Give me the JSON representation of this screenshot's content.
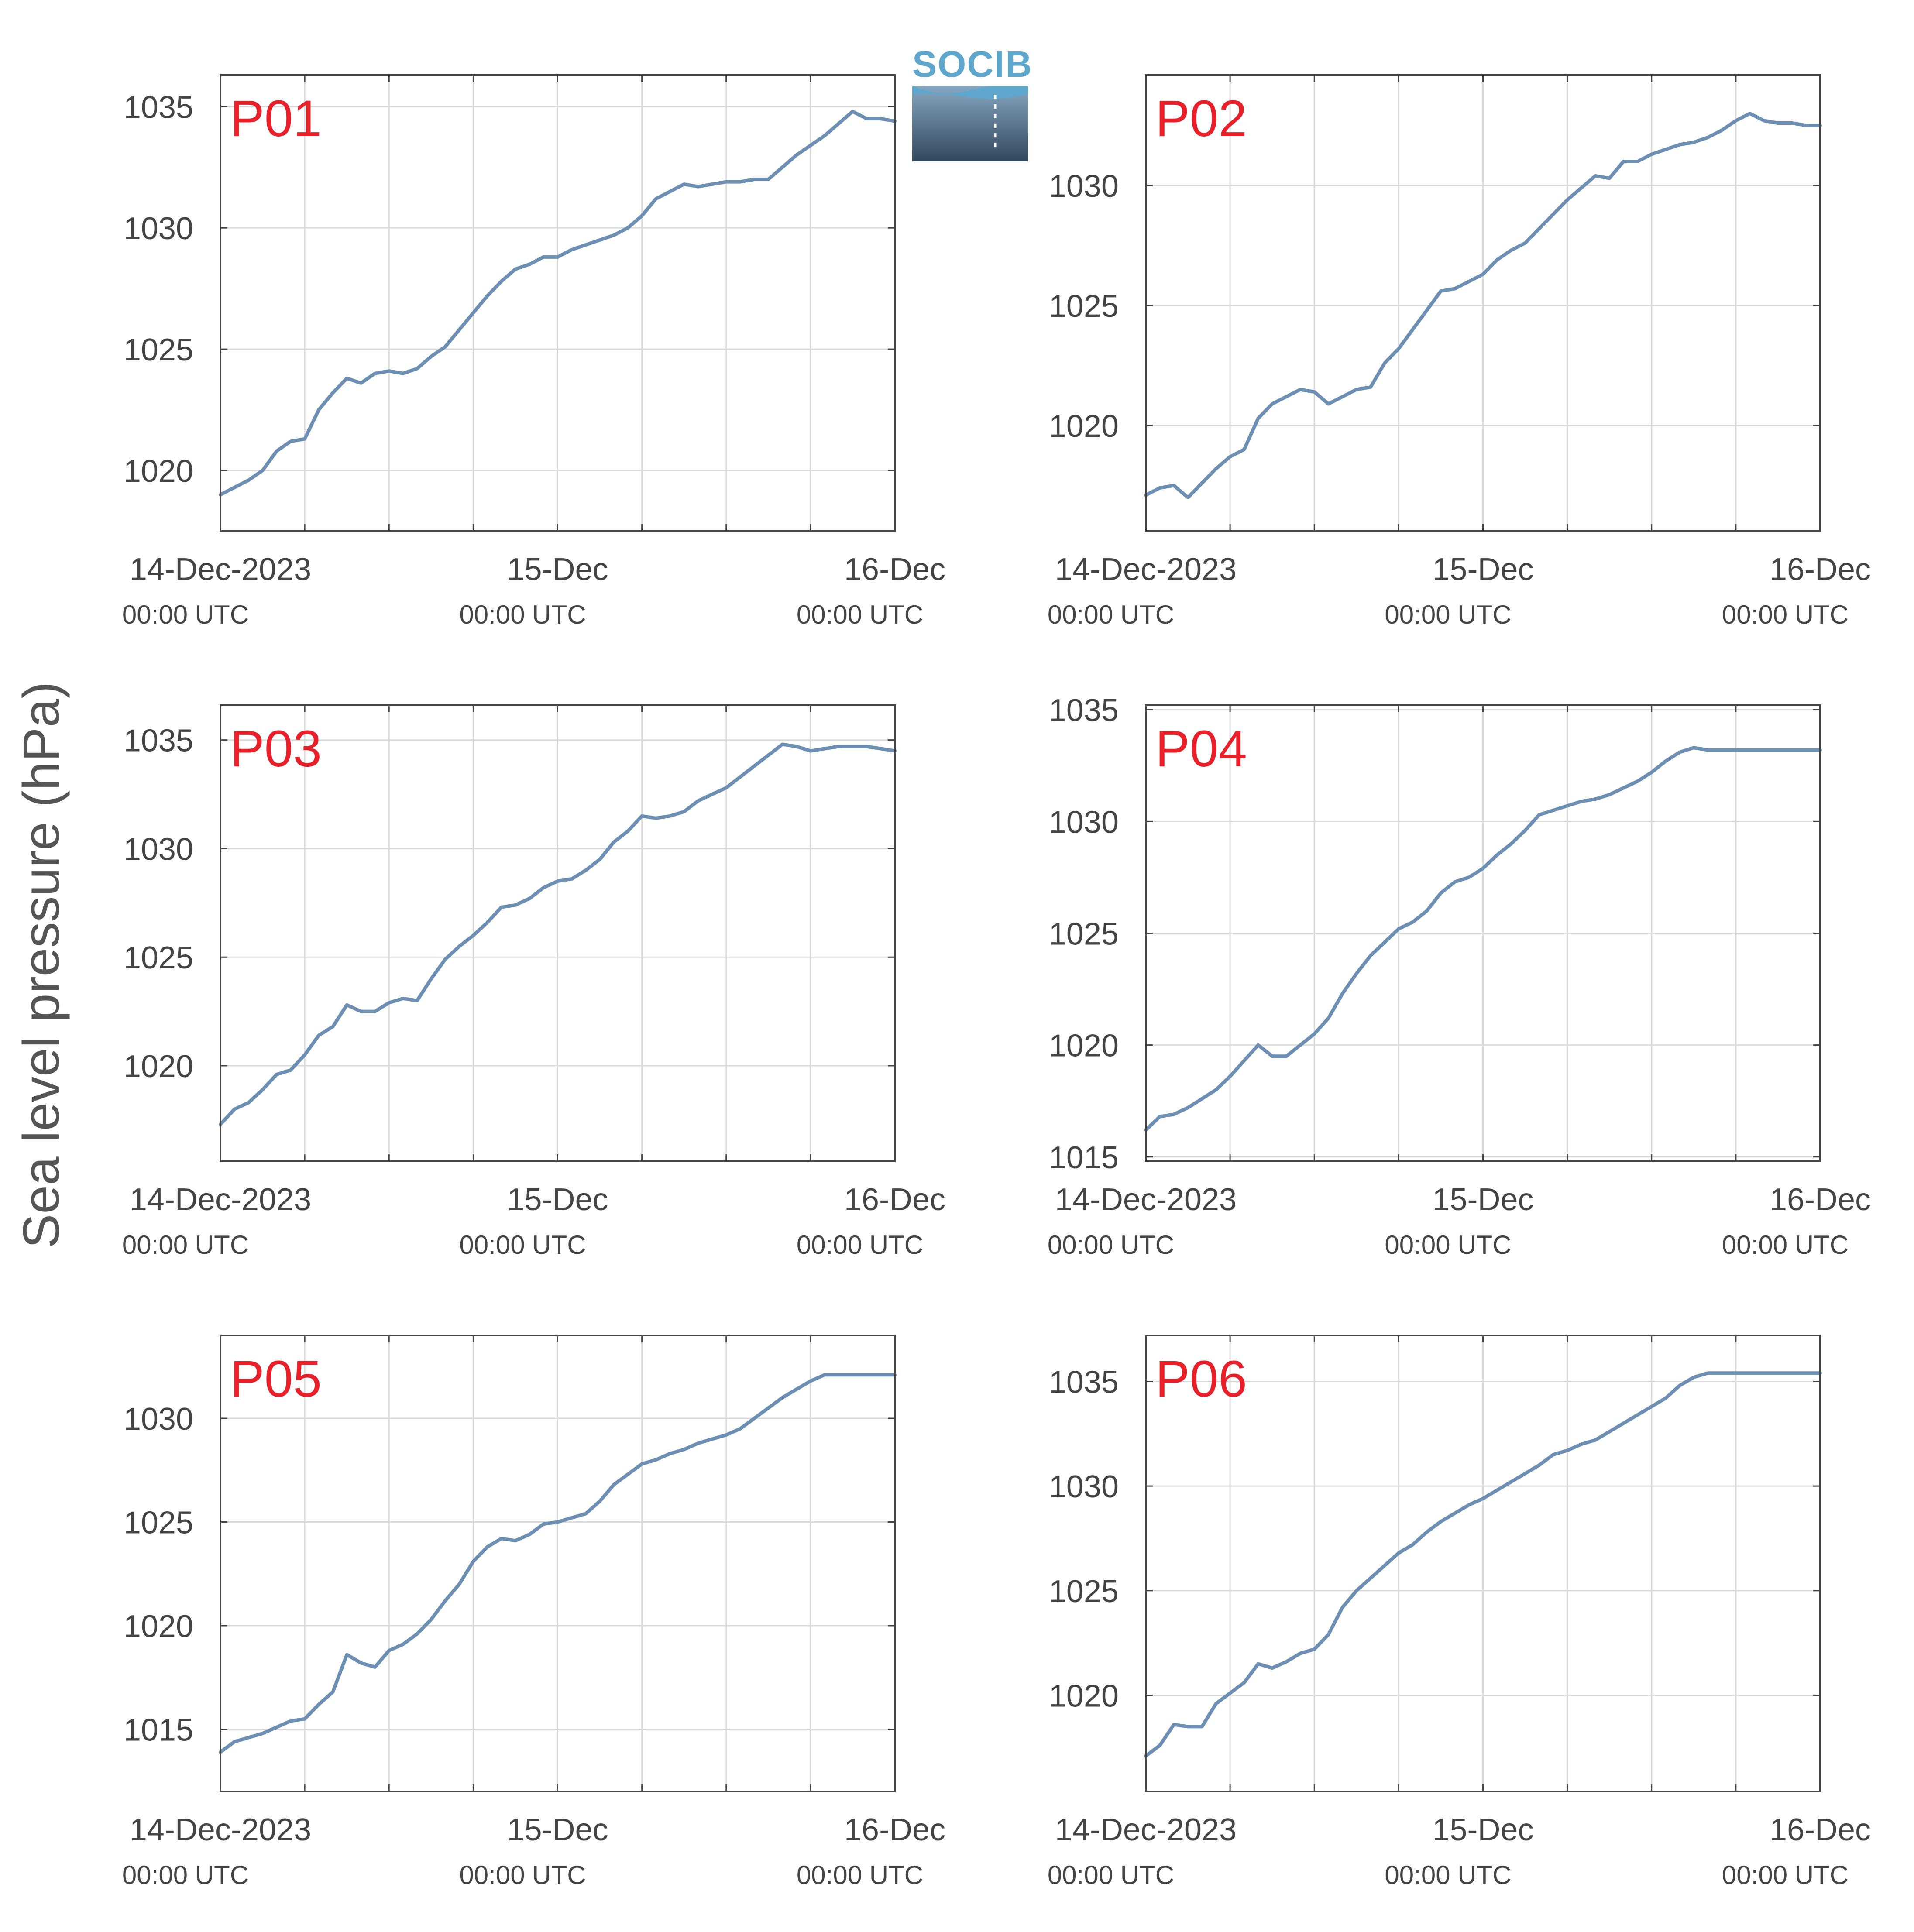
{
  "figure": {
    "ylabel": "Sea level pressure (hPa)",
    "line_color": "#6d8fb4",
    "label_color": "#e8202a",
    "grid_color": "#d9d9d9",
    "axis_color": "#444444",
    "text_color": "#444444"
  },
  "logo": {
    "text": "SOCIB"
  },
  "chart_data": [
    {
      "type": "line",
      "name": "P01",
      "label": "P01",
      "x_label_range": [
        "14-Dec-2023 00:00 UTC",
        "16-Dec 00:00 UTC"
      ],
      "ylim": [
        1017.5,
        1036.3
      ],
      "yticks": [
        1020,
        1025,
        1030,
        1035
      ],
      "xticks": [
        0,
        6,
        12,
        18,
        24,
        30,
        36,
        42,
        48
      ],
      "xtick_labels": [
        {
          "hour": 0,
          "date": "14-Dec-2023",
          "time": "00:00 UTC"
        },
        {
          "hour": 24,
          "date": "15-Dec",
          "time": "00:00 UTC"
        },
        {
          "hour": 48,
          "date": "16-Dec",
          "time": "00:00 UTC"
        }
      ],
      "x_hours": [
        0,
        1,
        2,
        3,
        4,
        5,
        6,
        7,
        8,
        9,
        10,
        11,
        12,
        13,
        14,
        15,
        16,
        17,
        18,
        19,
        20,
        21,
        22,
        23,
        24,
        25,
        26,
        27,
        28,
        29,
        30,
        31,
        32,
        33,
        34,
        35,
        36,
        37,
        38,
        39,
        40,
        41,
        42,
        43,
        44,
        45,
        46,
        47,
        48
      ],
      "y": [
        1019.0,
        1019.3,
        1019.6,
        1020.0,
        1020.8,
        1021.2,
        1021.3,
        1022.5,
        1023.2,
        1023.8,
        1023.6,
        1024.0,
        1024.1,
        1024.0,
        1024.2,
        1024.7,
        1025.1,
        1025.8,
        1026.5,
        1027.2,
        1027.8,
        1028.3,
        1028.5,
        1028.8,
        1028.8,
        1029.1,
        1029.3,
        1029.5,
        1029.7,
        1030.0,
        1030.5,
        1031.2,
        1031.5,
        1031.8,
        1031.7,
        1031.8,
        1031.9,
        1031.9,
        1032.0,
        1032.0,
        1032.5,
        1033.0,
        1033.4,
        1033.8,
        1034.3,
        1034.8,
        1034.5,
        1034.5,
        1034.4
      ]
    },
    {
      "type": "line",
      "name": "P02",
      "label": "P02",
      "ylim": [
        1015.6,
        1034.6
      ],
      "yticks": [
        1020,
        1025,
        1030
      ],
      "xticks": [
        0,
        6,
        12,
        18,
        24,
        30,
        36,
        42,
        48
      ],
      "xtick_labels": [
        {
          "hour": 0,
          "date": "14-Dec-2023",
          "time": "00:00 UTC"
        },
        {
          "hour": 24,
          "date": "15-Dec",
          "time": "00:00 UTC"
        },
        {
          "hour": 48,
          "date": "16-Dec",
          "time": "00:00 UTC"
        }
      ],
      "x_hours": [
        0,
        1,
        2,
        3,
        4,
        5,
        6,
        7,
        8,
        9,
        10,
        11,
        12,
        13,
        14,
        15,
        16,
        17,
        18,
        19,
        20,
        21,
        22,
        23,
        24,
        25,
        26,
        27,
        28,
        29,
        30,
        31,
        32,
        33,
        34,
        35,
        36,
        37,
        38,
        39,
        40,
        41,
        42,
        43,
        44,
        45,
        46,
        47,
        48
      ],
      "y": [
        1017.1,
        1017.4,
        1017.5,
        1017.0,
        1017.6,
        1018.2,
        1018.7,
        1019.0,
        1020.3,
        1020.9,
        1021.2,
        1021.5,
        1021.4,
        1020.9,
        1021.2,
        1021.5,
        1021.6,
        1022.6,
        1023.2,
        1024.0,
        1024.8,
        1025.6,
        1025.7,
        1026.0,
        1026.3,
        1026.9,
        1027.3,
        1027.6,
        1028.2,
        1028.8,
        1029.4,
        1029.9,
        1030.4,
        1030.3,
        1031.0,
        1031.0,
        1031.3,
        1031.5,
        1031.7,
        1031.8,
        1032.0,
        1032.3,
        1032.7,
        1033.0,
        1032.7,
        1032.6,
        1032.6,
        1032.5,
        1032.5
      ]
    },
    {
      "type": "line",
      "name": "P03",
      "label": "P03",
      "ylim": [
        1015.6,
        1036.6
      ],
      "yticks": [
        1020,
        1025,
        1030,
        1035
      ],
      "xticks": [
        0,
        6,
        12,
        18,
        24,
        30,
        36,
        42,
        48
      ],
      "xtick_labels": [
        {
          "hour": 0,
          "date": "14-Dec-2023",
          "time": "00:00 UTC"
        },
        {
          "hour": 24,
          "date": "15-Dec",
          "time": "00:00 UTC"
        },
        {
          "hour": 48,
          "date": "16-Dec",
          "time": "00:00 UTC"
        }
      ],
      "x_hours": [
        0,
        1,
        2,
        3,
        4,
        5,
        6,
        7,
        8,
        9,
        10,
        11,
        12,
        13,
        14,
        15,
        16,
        17,
        18,
        19,
        20,
        21,
        22,
        23,
        24,
        25,
        26,
        27,
        28,
        29,
        30,
        31,
        32,
        33,
        34,
        35,
        36,
        37,
        38,
        39,
        40,
        41,
        42,
        43,
        44,
        45,
        46,
        47,
        48
      ],
      "y": [
        1017.3,
        1018.0,
        1018.3,
        1018.9,
        1019.6,
        1019.8,
        1020.5,
        1021.4,
        1021.8,
        1022.8,
        1022.5,
        1022.5,
        1022.9,
        1023.1,
        1023.0,
        1024.0,
        1024.9,
        1025.5,
        1026.0,
        1026.6,
        1027.3,
        1027.4,
        1027.7,
        1028.2,
        1028.5,
        1028.6,
        1029.0,
        1029.5,
        1030.3,
        1030.8,
        1031.5,
        1031.4,
        1031.5,
        1031.7,
        1032.2,
        1032.5,
        1032.8,
        1033.3,
        1033.8,
        1034.3,
        1034.8,
        1034.7,
        1034.5,
        1034.6,
        1034.7,
        1034.7,
        1034.7,
        1034.6,
        1034.5
      ]
    },
    {
      "type": "line",
      "name": "P04",
      "label": "P04",
      "ylim": [
        1014.8,
        1035.2
      ],
      "yticks": [
        1015,
        1020,
        1025,
        1030,
        1035
      ],
      "xticks": [
        0,
        6,
        12,
        18,
        24,
        30,
        36,
        42,
        48
      ],
      "xtick_labels": [
        {
          "hour": 0,
          "date": "14-Dec-2023",
          "time": "00:00 UTC"
        },
        {
          "hour": 24,
          "date": "15-Dec",
          "time": "00:00 UTC"
        },
        {
          "hour": 48,
          "date": "16-Dec",
          "time": "00:00 UTC"
        }
      ],
      "x_hours": [
        0,
        1,
        2,
        3,
        4,
        5,
        6,
        7,
        8,
        9,
        10,
        11,
        12,
        13,
        14,
        15,
        16,
        17,
        18,
        19,
        20,
        21,
        22,
        23,
        24,
        25,
        26,
        27,
        28,
        29,
        30,
        31,
        32,
        33,
        34,
        35,
        36,
        37,
        38,
        39,
        40,
        41,
        42,
        43,
        44,
        45,
        46,
        47,
        48
      ],
      "y": [
        1016.2,
        1016.8,
        1016.9,
        1017.2,
        1017.6,
        1018.0,
        1018.6,
        1019.3,
        1020.0,
        1019.5,
        1019.5,
        1020.0,
        1020.5,
        1021.2,
        1022.3,
        1023.2,
        1024.0,
        1024.6,
        1025.2,
        1025.5,
        1026.0,
        1026.8,
        1027.3,
        1027.5,
        1027.9,
        1028.5,
        1029.0,
        1029.6,
        1030.3,
        1030.5,
        1030.7,
        1030.9,
        1031.0,
        1031.2,
        1031.5,
        1031.8,
        1032.2,
        1032.7,
        1033.1,
        1033.3,
        1033.2,
        1033.2,
        1033.2,
        1033.2,
        1033.2,
        1033.2,
        1033.2,
        1033.2,
        1033.2
      ]
    },
    {
      "type": "line",
      "name": "P05",
      "label": "P05",
      "ylim": [
        1012.0,
        1034.0
      ],
      "yticks": [
        1015,
        1020,
        1025,
        1030
      ],
      "xticks": [
        0,
        6,
        12,
        18,
        24,
        30,
        36,
        42,
        48
      ],
      "xtick_labels": [
        {
          "hour": 0,
          "date": "14-Dec-2023",
          "time": "00:00 UTC"
        },
        {
          "hour": 24,
          "date": "15-Dec",
          "time": "00:00 UTC"
        },
        {
          "hour": 48,
          "date": "16-Dec",
          "time": "00:00 UTC"
        }
      ],
      "x_hours": [
        0,
        1,
        2,
        3,
        4,
        5,
        6,
        7,
        8,
        9,
        10,
        11,
        12,
        13,
        14,
        15,
        16,
        17,
        18,
        19,
        20,
        21,
        22,
        23,
        24,
        25,
        26,
        27,
        28,
        29,
        30,
        31,
        32,
        33,
        34,
        35,
        36,
        37,
        38,
        39,
        40,
        41,
        42,
        43,
        44,
        45,
        46,
        47,
        48
      ],
      "y": [
        1013.9,
        1014.4,
        1014.6,
        1014.8,
        1015.1,
        1015.4,
        1015.5,
        1016.2,
        1016.8,
        1018.6,
        1018.2,
        1018.0,
        1018.8,
        1019.1,
        1019.6,
        1020.3,
        1021.2,
        1022.0,
        1023.1,
        1023.8,
        1024.2,
        1024.1,
        1024.4,
        1024.9,
        1025.0,
        1025.2,
        1025.4,
        1026.0,
        1026.8,
        1027.3,
        1027.8,
        1028.0,
        1028.3,
        1028.5,
        1028.8,
        1029.0,
        1029.2,
        1029.5,
        1030.0,
        1030.5,
        1031.0,
        1031.4,
        1031.8,
        1032.1,
        1032.1,
        1032.1,
        1032.1,
        1032.1,
        1032.1
      ]
    },
    {
      "type": "line",
      "name": "P06",
      "label": "P06",
      "ylim": [
        1015.4,
        1037.2
      ],
      "yticks": [
        1020,
        1025,
        1030,
        1035
      ],
      "xticks": [
        0,
        6,
        12,
        18,
        24,
        30,
        36,
        42,
        48
      ],
      "xtick_labels": [
        {
          "hour": 0,
          "date": "14-Dec-2023",
          "time": "00:00 UTC"
        },
        {
          "hour": 24,
          "date": "15-Dec",
          "time": "00:00 UTC"
        },
        {
          "hour": 48,
          "date": "16-Dec",
          "time": "00:00 UTC"
        }
      ],
      "x_hours": [
        0,
        1,
        2,
        3,
        4,
        5,
        6,
        7,
        8,
        9,
        10,
        11,
        12,
        13,
        14,
        15,
        16,
        17,
        18,
        19,
        20,
        21,
        22,
        23,
        24,
        25,
        26,
        27,
        28,
        29,
        30,
        31,
        32,
        33,
        34,
        35,
        36,
        37,
        38,
        39,
        40,
        41,
        42,
        43,
        44,
        45,
        46,
        47,
        48
      ],
      "y": [
        1017.1,
        1017.6,
        1018.6,
        1018.5,
        1018.5,
        1019.6,
        1020.1,
        1020.6,
        1021.5,
        1021.3,
        1021.6,
        1022.0,
        1022.2,
        1022.9,
        1024.2,
        1025.0,
        1025.6,
        1026.2,
        1026.8,
        1027.2,
        1027.8,
        1028.3,
        1028.7,
        1029.1,
        1029.4,
        1029.8,
        1030.2,
        1030.6,
        1031.0,
        1031.5,
        1031.7,
        1032.0,
        1032.2,
        1032.6,
        1033.0,
        1033.4,
        1033.8,
        1034.2,
        1034.8,
        1035.2,
        1035.4,
        1035.4,
        1035.4,
        1035.4,
        1035.4,
        1035.4,
        1035.4,
        1035.4,
        1035.4
      ]
    }
  ]
}
